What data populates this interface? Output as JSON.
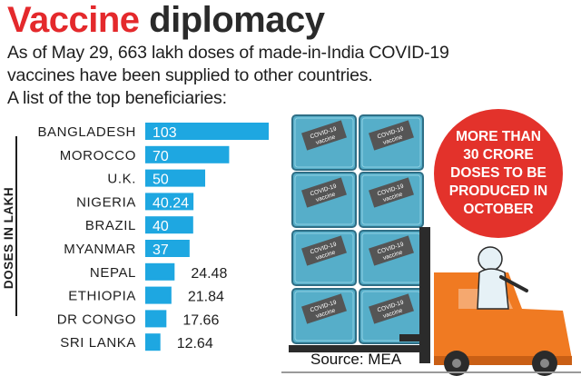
{
  "header": {
    "title_part1": "Vaccine",
    "title_part2": "diplomacy",
    "subtitle_line1": "As of May 29, 663 lakh doses of made-in-India COVID-19",
    "subtitle_line2": "vaccines have been supplied to other countries.",
    "subtitle_line3": "A list of the top beneficiaries:"
  },
  "colors": {
    "title_red": "#e4292c",
    "bar_blue": "#1ea7e1",
    "badge_red": "#e3322b",
    "crate_teal": "#56aec9",
    "forklift_orange": "#f07a22"
  },
  "chart_data": {
    "type": "bar",
    "orientation": "horizontal",
    "ylabel": "DOSES IN LAKH",
    "categories": [
      "BANGLADESH",
      "MOROCCO",
      "U.K.",
      "NIGERIA",
      "BRAZIL",
      "MYANMAR",
      "NEPAL",
      "ETHIOPIA",
      "DR CONGO",
      "SRI LANKA"
    ],
    "values": [
      103,
      70,
      50,
      40.24,
      40,
      37,
      24.48,
      21.84,
      17.66,
      12.64
    ],
    "value_labels": [
      "103",
      "70",
      "50",
      "40.24",
      "40",
      "37",
      "24.48",
      "21.84",
      "17.66",
      "12.64"
    ],
    "label_inside_bar": [
      true,
      true,
      true,
      true,
      true,
      true,
      false,
      false,
      false,
      false
    ],
    "xlim": [
      0,
      103
    ],
    "grid": false,
    "legend": "none"
  },
  "illustration": {
    "crate_label": "COVID-19\nvaccine"
  },
  "badge": {
    "text": "MORE THAN\n30 CRORE\nDOSES TO BE\nPRODUCED IN\nOCTOBER"
  },
  "source": {
    "text": "Source: MEA"
  }
}
